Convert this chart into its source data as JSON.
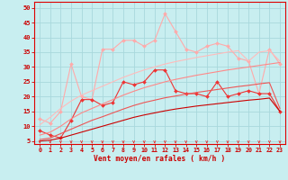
{
  "title": "",
  "xlabel": "Vent moyen/en rafales ( km/h )",
  "background_color": "#c8eef0",
  "grid_color": "#a8d8dc",
  "x_values": [
    0,
    1,
    2,
    3,
    4,
    5,
    6,
    7,
    8,
    9,
    10,
    11,
    12,
    13,
    14,
    15,
    16,
    17,
    18,
    19,
    20,
    21,
    22,
    23
  ],
  "ylim": [
    4,
    52
  ],
  "xlim": [
    -0.5,
    23.5
  ],
  "yticks": [
    5,
    10,
    15,
    20,
    25,
    30,
    35,
    40,
    45,
    50
  ],
  "xticks": [
    0,
    1,
    2,
    3,
    4,
    5,
    6,
    7,
    8,
    9,
    10,
    11,
    12,
    13,
    14,
    15,
    16,
    17,
    18,
    19,
    20,
    21,
    22,
    23
  ],
  "lines": [
    {
      "color": "#ffaaaa",
      "linewidth": 0.8,
      "marker": "D",
      "markersize": 2.0,
      "y": [
        12.5,
        11,
        15,
        31,
        20,
        19,
        36,
        36,
        39,
        39,
        37,
        39,
        48,
        42,
        36,
        35,
        37,
        38,
        37,
        33,
        32,
        21,
        36,
        31
      ]
    },
    {
      "color": "#ee3333",
      "linewidth": 0.8,
      "marker": "D",
      "markersize": 2.0,
      "y": [
        8.5,
        7,
        6,
        12,
        19,
        19,
        17,
        18,
        25,
        24,
        25,
        29,
        29,
        22,
        21,
        21,
        20,
        25,
        20,
        21,
        22,
        21,
        21,
        15
      ]
    },
    {
      "color": "#cc0000",
      "linewidth": 0.8,
      "marker": null,
      "y": [
        5.0,
        5.3,
        6.0,
        7.0,
        8.0,
        9.0,
        10.0,
        11.0,
        12.0,
        13.0,
        13.8,
        14.5,
        15.2,
        15.8,
        16.3,
        16.8,
        17.2,
        17.6,
        18.0,
        18.4,
        18.8,
        19.1,
        19.5,
        15
      ]
    },
    {
      "color": "#ee5555",
      "linewidth": 0.8,
      "marker": null,
      "y": [
        5.5,
        6.0,
        7.5,
        9.0,
        10.5,
        12.0,
        13.2,
        14.5,
        15.8,
        17.0,
        18.0,
        18.8,
        19.6,
        20.2,
        20.8,
        21.4,
        21.9,
        22.4,
        22.9,
        23.4,
        23.8,
        24.3,
        24.7,
        16
      ]
    },
    {
      "color": "#ff8888",
      "linewidth": 0.8,
      "marker": null,
      "y": [
        7.0,
        8.0,
        10.0,
        12.5,
        14.5,
        16.0,
        17.5,
        19.0,
        20.5,
        21.8,
        23.0,
        24.0,
        25.0,
        25.8,
        26.5,
        27.2,
        27.8,
        28.4,
        29.0,
        29.5,
        30.0,
        30.5,
        31.0,
        31.5
      ]
    },
    {
      "color": "#ffbbbb",
      "linewidth": 0.8,
      "marker": null,
      "y": [
        10.5,
        13.0,
        16.0,
        18.5,
        20.5,
        22.0,
        23.5,
        25.0,
        26.5,
        27.8,
        29.0,
        30.0,
        31.0,
        31.8,
        32.5,
        33.2,
        33.8,
        34.4,
        35.0,
        35.5,
        32.0,
        35.0,
        35.5,
        32.0
      ]
    }
  ],
  "tick_color": "#cc0000",
  "label_color": "#cc0000",
  "axis_color": "#dd0000",
  "arrow_color": "#ee2222"
}
